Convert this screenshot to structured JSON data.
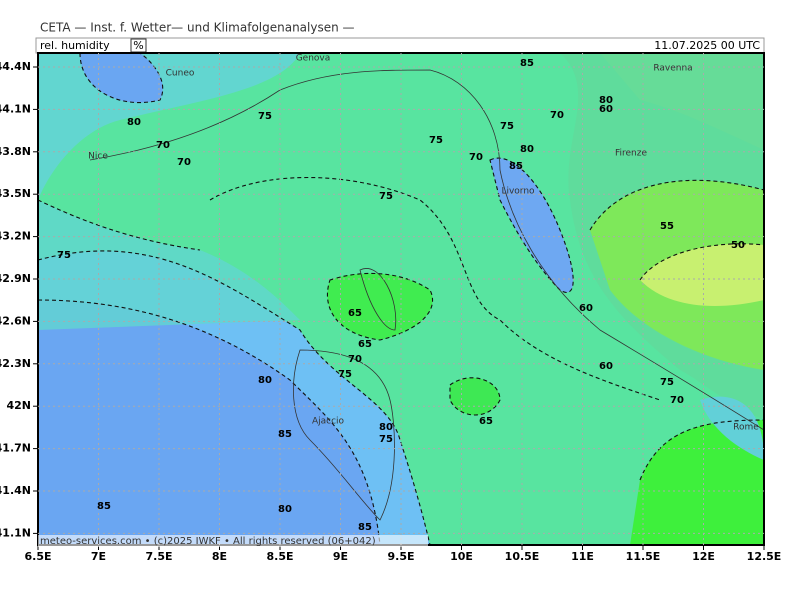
{
  "header": {
    "title": "CETA — Inst. f. Wetter— und Klimafolgenanalysen —",
    "variable": "rel. humidity",
    "unit": "%",
    "datetime": "11.07.2025 00 UTC"
  },
  "map": {
    "x_ticks": [
      "6.5E",
      "7E",
      "7.5E",
      "8E",
      "8.5E",
      "9E",
      "9.5E",
      "10E",
      "10.5E",
      "11E",
      "11.5E",
      "12E",
      "12.5E"
    ],
    "y_ticks": [
      "44.4N",
      "44.1N",
      "43.8N",
      "43.5N",
      "43.2N",
      "42.9N",
      "42.6N",
      "42.3N",
      "42N",
      "41.7N",
      "41.4N",
      "41.1N"
    ],
    "places": [
      "Genova",
      "Cuneo",
      "Ravenna",
      "Nice",
      "Firenze",
      "Livorno",
      "Ajaccio",
      "Rome"
    ],
    "contour_labels": [
      "85",
      "80",
      "75",
      "70",
      "70",
      "75",
      "70",
      "75",
      "70",
      "80",
      "60",
      "85",
      "80",
      "75",
      "75",
      "55",
      "50",
      "65",
      "65",
      "70",
      "75",
      "80",
      "60",
      "60",
      "75",
      "70",
      "85",
      "80",
      "75",
      "65",
      "85",
      "80",
      "85"
    ]
  },
  "footer": "meteo-services.com • (c)2025 IWKF • All rights reserved (06+042)"
}
